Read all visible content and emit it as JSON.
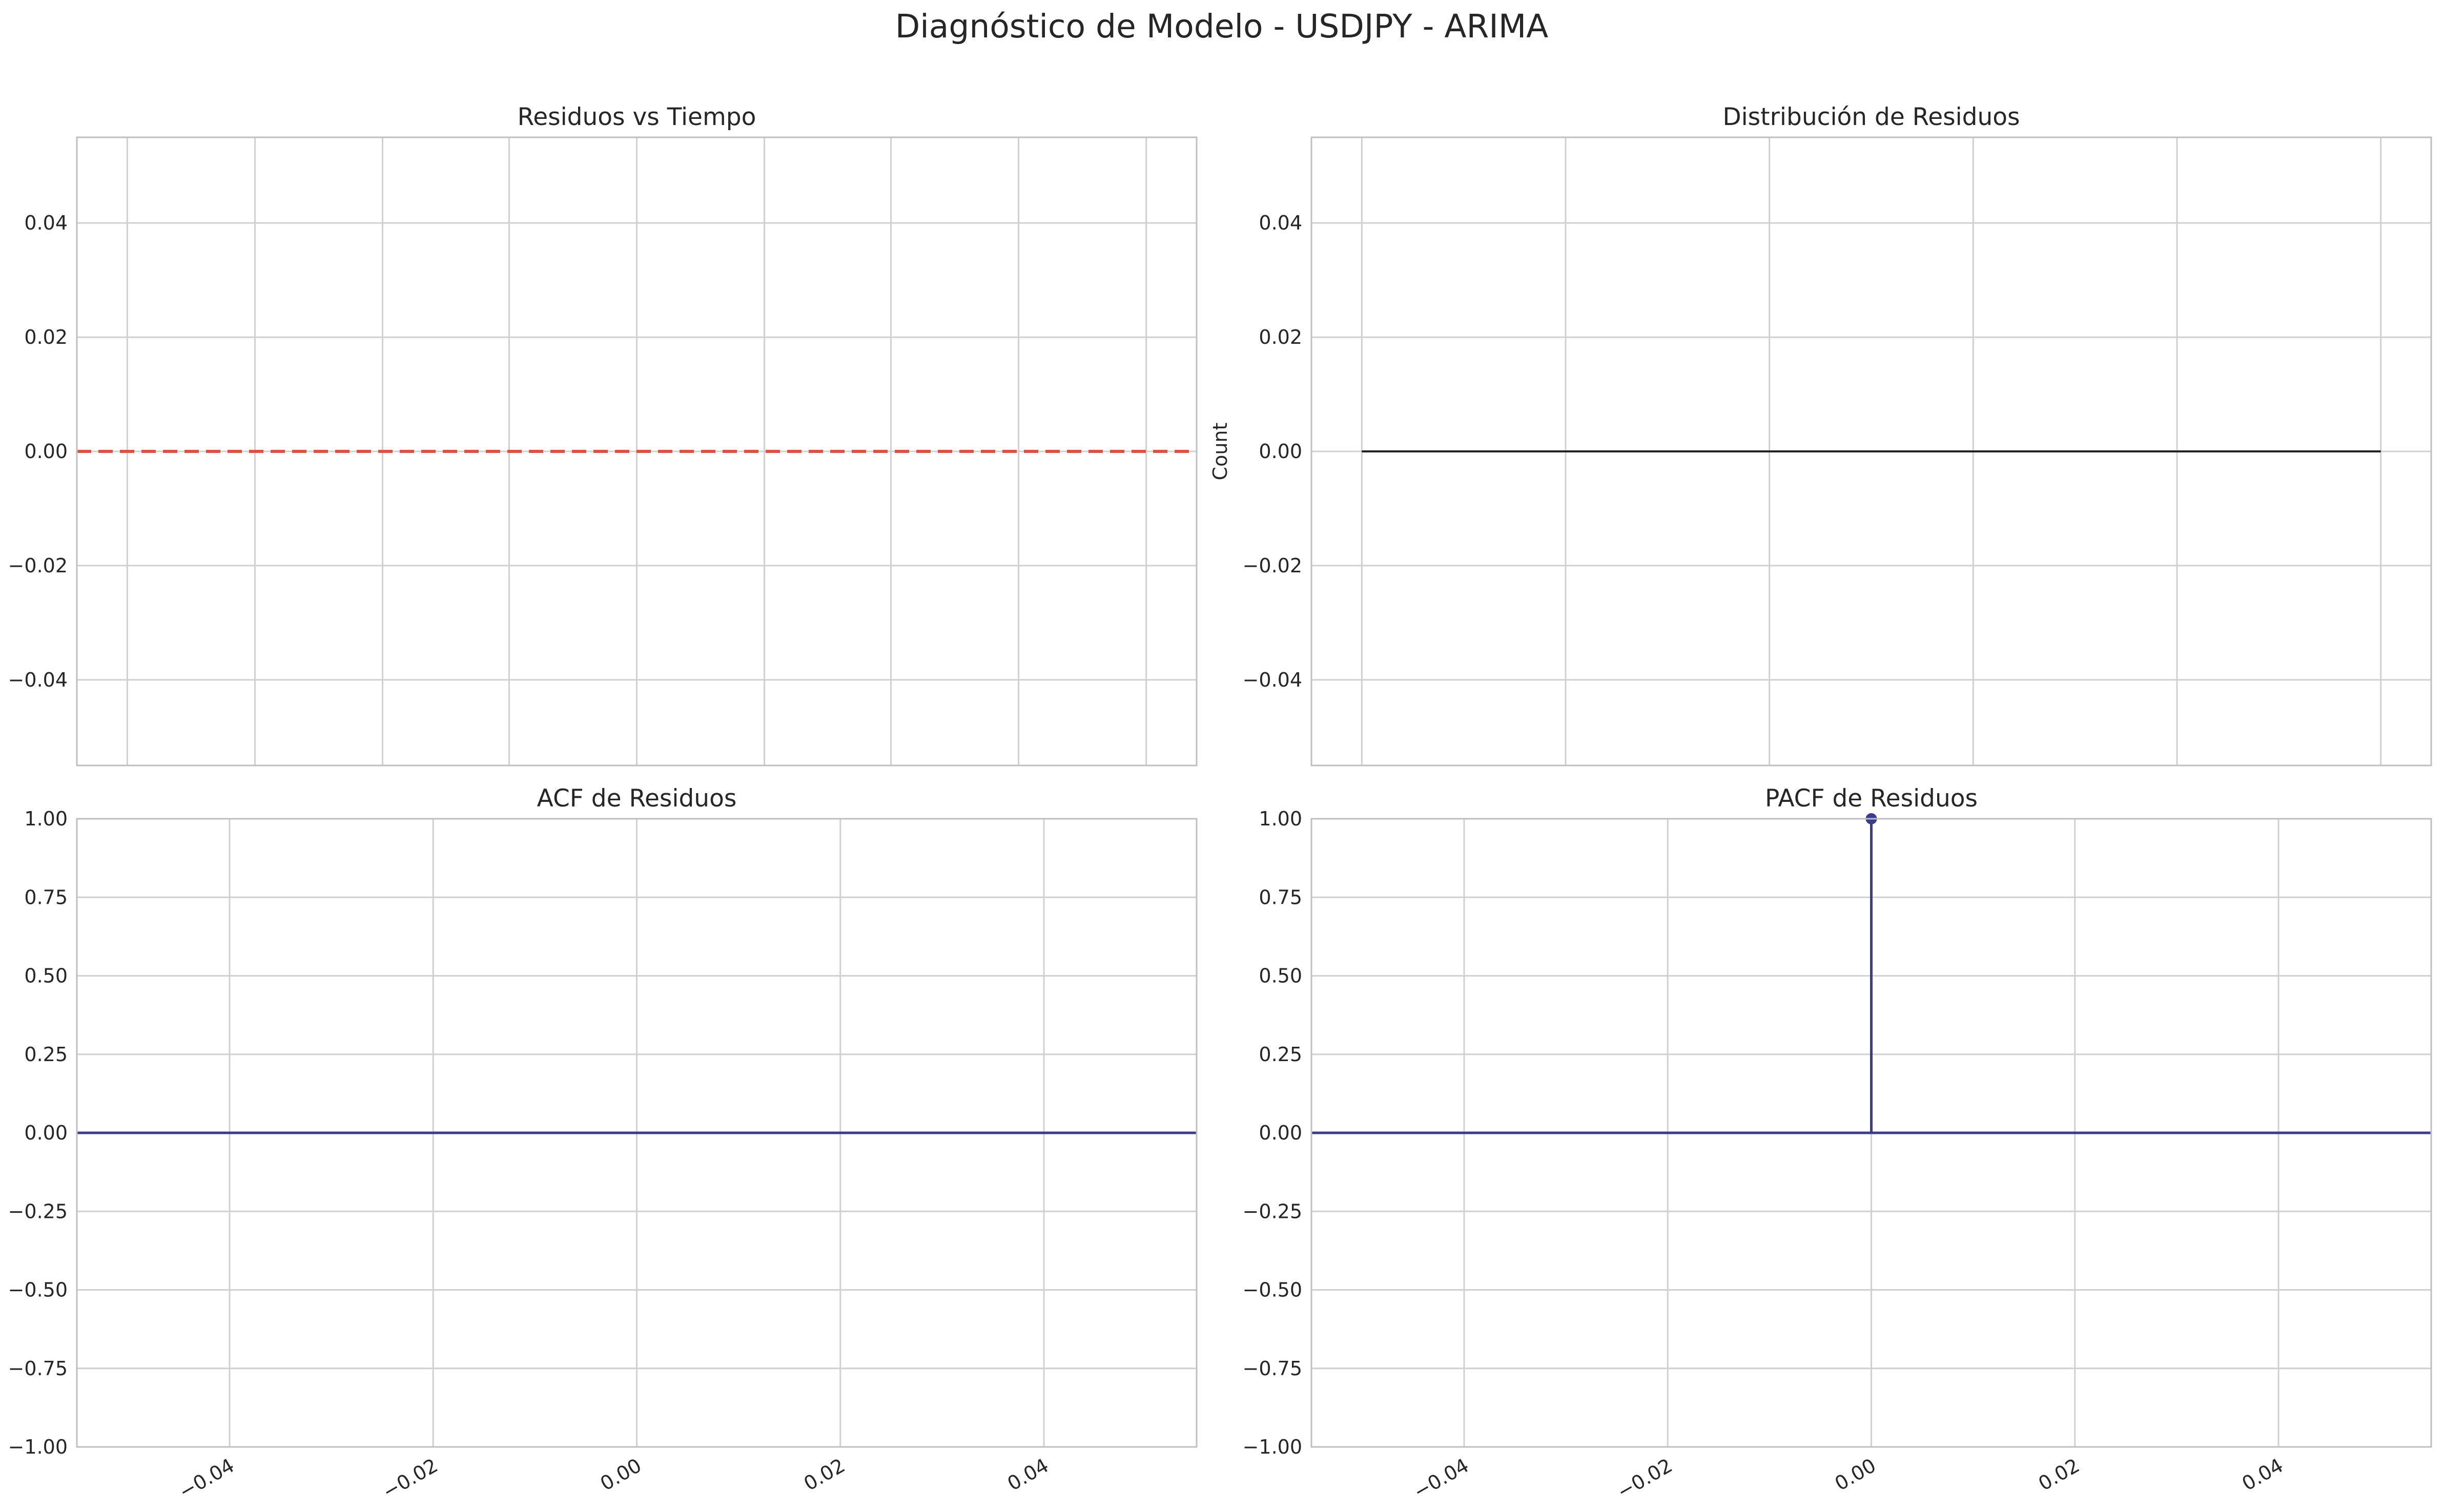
{
  "figure": {
    "suptitle": "Diagnóstico de Modelo - USDJPY - ARIMA"
  },
  "chart_data": [
    {
      "id": "residuals_time",
      "type": "line",
      "title": "Residuos vs Tiempo",
      "xlabel": "",
      "ylabel": "",
      "ylim": [
        -0.055,
        0.055
      ],
      "yticks": [
        -0.04,
        -0.02,
        0.0,
        0.02,
        0.04
      ],
      "ytick_labels": [
        "−0.04",
        "−0.02",
        "0.00",
        "0.02",
        "0.04"
      ],
      "xtick_labels_visible": false,
      "grid": true,
      "series": [],
      "reference_line": {
        "y": 0.0,
        "style": "dashed",
        "color": "#e74c3c"
      }
    },
    {
      "id": "residuals_hist",
      "type": "bar",
      "title": "Distribución de Residuos",
      "xlabel": "",
      "ylabel": "Count",
      "ylim": [
        -0.055,
        0.055
      ],
      "yticks": [
        -0.04,
        -0.02,
        0.0,
        0.02,
        0.04
      ],
      "ytick_labels": [
        "−0.04",
        "−0.02",
        "0.00",
        "0.02",
        "0.04"
      ],
      "xtick_labels_visible": false,
      "grid": true,
      "series": [
        {
          "values": [
            0,
            0,
            0,
            0,
            0
          ]
        }
      ],
      "baseline": {
        "y": 0.0,
        "color": "#222222"
      }
    },
    {
      "id": "acf",
      "type": "line",
      "title": "ACF de Residuos",
      "xlabel": "",
      "ylabel": "",
      "xlim": [
        -0.055,
        0.055
      ],
      "xticks": [
        -0.04,
        -0.02,
        0.0,
        0.02,
        0.04
      ],
      "xtick_labels": [
        "−0.04",
        "−0.02",
        "0.00",
        "0.02",
        "0.04"
      ],
      "ylim": [
        -1.0,
        1.0
      ],
      "yticks": [
        -1.0,
        -0.75,
        -0.5,
        -0.25,
        0.0,
        0.25,
        0.5,
        0.75,
        1.0
      ],
      "ytick_labels": [
        "−1.00",
        "−0.75",
        "−0.50",
        "−0.25",
        "0.00",
        "0.25",
        "0.50",
        "0.75",
        "1.00"
      ],
      "grid": true,
      "series": [],
      "zero_line": {
        "y": 0.0,
        "color": "#3b3b8f"
      }
    },
    {
      "id": "pacf",
      "type": "line",
      "title": "PACF de Residuos",
      "xlabel": "",
      "ylabel": "",
      "xlim": [
        -0.055,
        0.055
      ],
      "xticks": [
        -0.04,
        -0.02,
        0.0,
        0.02,
        0.04
      ],
      "xtick_labels": [
        "−0.04",
        "−0.02",
        "0.00",
        "0.02",
        "0.04"
      ],
      "ylim": [
        -1.0,
        1.0
      ],
      "yticks": [
        -1.0,
        -0.75,
        -0.5,
        -0.25,
        0.0,
        0.25,
        0.5,
        0.75,
        1.0
      ],
      "ytick_labels": [
        "−1.00",
        "−0.75",
        "−0.50",
        "−0.25",
        "0.00",
        "0.25",
        "0.50",
        "0.75",
        "1.00"
      ],
      "grid": true,
      "series": [
        {
          "x": [
            0.0
          ],
          "y": [
            1.0
          ]
        }
      ],
      "zero_line": {
        "y": 0.0,
        "color": "#3b3b8f"
      }
    }
  ]
}
